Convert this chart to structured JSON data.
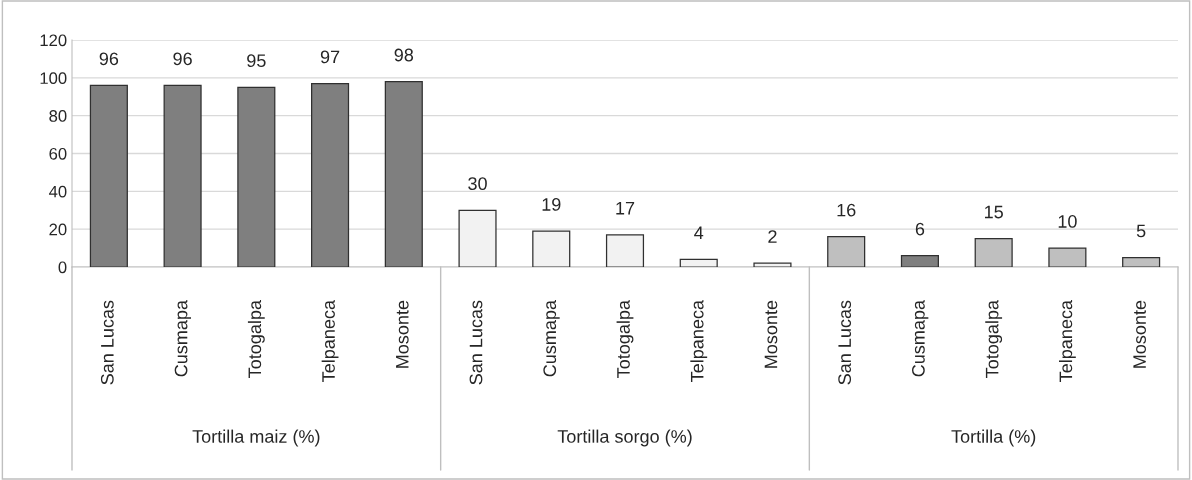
{
  "chart_data": {
    "type": "bar",
    "categories": [
      "San Lucas",
      "Cusmapa",
      "Totogalpa",
      "Telpaneca",
      "Mosonte",
      "San Lucas",
      "Cusmapa",
      "Totogalpa",
      "Telpaneca",
      "Mosonte",
      "San Lucas",
      "Cusmapa",
      "Totogalpa",
      "Telpaneca",
      "Mosonte"
    ],
    "values": [
      96,
      96,
      95,
      97,
      98,
      30,
      19,
      17,
      4,
      2,
      16,
      6,
      15,
      10,
      5
    ],
    "colors": [
      "#7f7f7f",
      "#7f7f7f",
      "#7f7f7f",
      "#7f7f7f",
      "#7f7f7f",
      "#f2f2f2",
      "#f2f2f2",
      "#f2f2f2",
      "#f2f2f2",
      "#f2f2f2",
      "#bfbfbf",
      "#7f7f7f",
      "#bfbfbf",
      "#bfbfbf",
      "#bfbfbf"
    ],
    "annotations": [
      "Tortilla maiz (%)",
      "Tortilla sorgo (%)",
      "Tortilla (%)"
    ],
    "ylim": [
      0,
      120
    ],
    "yticks": [
      0,
      20,
      40,
      60,
      80,
      100,
      120
    ],
    "grid": "y",
    "data_labels": true
  }
}
